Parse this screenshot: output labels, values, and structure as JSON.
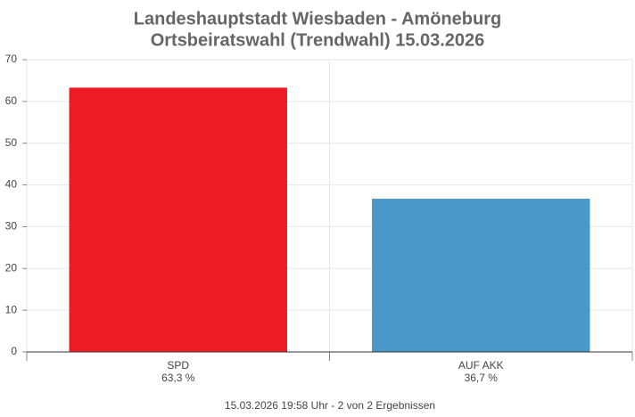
{
  "chart_data": {
    "type": "bar",
    "title": "Landeshauptstadt Wiesbaden - Amöneburg",
    "subtitle": "Ortsbeiratswahl (Trendwahl) 15.03.2026",
    "categories": [
      "SPD",
      "AUF AKK"
    ],
    "values": [
      63.3,
      36.7
    ],
    "value_labels": [
      "63,3 %",
      "36,7 %"
    ],
    "colors": [
      "#ed1c24",
      "#4a98c9"
    ],
    "ylim": [
      0,
      70
    ],
    "yticks": [
      0,
      10,
      20,
      30,
      40,
      50,
      60,
      70
    ],
    "grid": true,
    "footnote": "15.03.2026 19:58 Uhr - 2 von 2 Ergebnissen"
  }
}
